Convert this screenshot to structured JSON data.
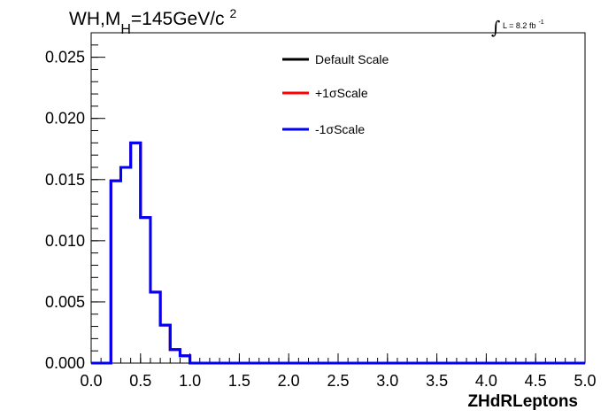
{
  "chart_data": {
    "type": "line",
    "step": true,
    "title": {
      "main": "WH,M",
      "subscript": "H",
      "rest": "=145GeV/c",
      "superscript": "2"
    },
    "lumi": {
      "symbol": "∫",
      "text": "L = 8.2 fb",
      "superscript": "-1"
    },
    "xlabel": "ZHdRLeptons",
    "ylabel": "",
    "xlim": [
      0.0,
      5.0
    ],
    "ylim": [
      0.0,
      0.027
    ],
    "x_ticks": [
      "0.0",
      "0.5",
      "1.0",
      "1.5",
      "2.0",
      "2.5",
      "3.0",
      "3.5",
      "4.0",
      "4.5",
      "5.0"
    ],
    "y_ticks": [
      "0.000",
      "0.005",
      "0.010",
      "0.015",
      "0.020",
      "0.025"
    ],
    "bin_width": 0.1,
    "bin_edges": [
      0.0,
      0.1,
      0.2,
      0.3,
      0.4,
      0.5,
      0.6,
      0.7,
      0.8,
      0.9,
      1.0,
      1.1,
      1.2,
      1.3,
      1.4,
      1.5,
      1.6,
      1.7,
      1.8,
      1.9,
      2.0,
      2.1,
      2.2,
      2.3,
      2.4,
      2.5,
      2.6,
      2.7,
      2.8,
      2.9,
      3.0,
      3.1,
      3.2,
      3.3,
      3.4,
      3.5,
      3.6,
      3.7,
      3.8,
      3.9,
      4.0,
      4.1,
      4.2,
      4.3,
      4.4,
      4.5,
      4.6,
      4.7,
      4.8,
      4.9,
      5.0
    ],
    "series": [
      {
        "name": "Default Scale",
        "color": "#000000",
        "values": [
          0,
          0,
          0.0149,
          0.016,
          0.018,
          0.0119,
          0.0058,
          0.0031,
          0.0011,
          0.0006,
          0,
          0,
          0,
          0,
          0,
          0,
          0,
          0,
          0,
          0,
          0,
          0,
          0,
          0,
          0,
          0,
          0,
          0,
          0,
          0,
          0,
          0,
          0,
          0,
          0,
          0,
          0,
          0,
          0,
          0,
          0,
          0,
          0,
          0,
          0,
          0,
          0,
          0,
          0,
          0
        ]
      },
      {
        "name": "+1σScale",
        "color": "#ff0000",
        "values": [
          0,
          0,
          0.0149,
          0.016,
          0.018,
          0.0119,
          0.0058,
          0.0031,
          0.0011,
          0.0006,
          0,
          0,
          0,
          0,
          0,
          0,
          0,
          0,
          0,
          0,
          0,
          0,
          0,
          0,
          0,
          0,
          0,
          0,
          0,
          0,
          0,
          0,
          0,
          0,
          0,
          0,
          0,
          0,
          0,
          0,
          0,
          0,
          0,
          0,
          0,
          0,
          0,
          0,
          0,
          0
        ]
      },
      {
        "name": "-1σScale",
        "color": "#0000ff",
        "values": [
          0,
          0,
          0.0149,
          0.016,
          0.018,
          0.0119,
          0.0058,
          0.0031,
          0.0011,
          0.0006,
          0,
          0,
          0,
          0,
          0,
          0,
          0,
          0,
          0,
          0,
          0,
          0,
          0,
          0,
          0,
          0,
          0,
          0,
          0,
          0,
          0,
          0,
          0,
          0,
          0,
          0,
          0,
          0,
          0,
          0,
          0,
          0,
          0,
          0,
          0,
          0,
          0,
          0,
          0,
          0
        ]
      }
    ],
    "legend_position": "top-center",
    "grid": false
  }
}
